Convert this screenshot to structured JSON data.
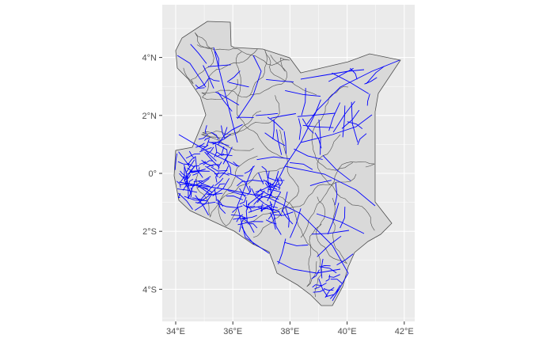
{
  "map": {
    "x_ticks": [
      "34°E",
      "36°E",
      "38°E",
      "40°E",
      "42°E"
    ],
    "y_ticks": [
      "4°N",
      "2°N",
      "0°",
      "2°S",
      "4°S"
    ],
    "x_tick_values": [
      34,
      36,
      38,
      40,
      42
    ],
    "y_tick_values": [
      4,
      2,
      0,
      -2,
      -4
    ],
    "lon_range": [
      33.5,
      42.3
    ],
    "lat_range": [
      -5.2,
      5.9
    ],
    "colors": {
      "panel_background": "#ebebeb",
      "grid_major": "#ffffff",
      "land_fill": "#d9d9d9",
      "boundary_stroke": "#4d4d4d",
      "road_stroke": "#0000ff",
      "tick_label": "#4d4d4d"
    },
    "layers": [
      "county boundaries",
      "road network"
    ]
  }
}
